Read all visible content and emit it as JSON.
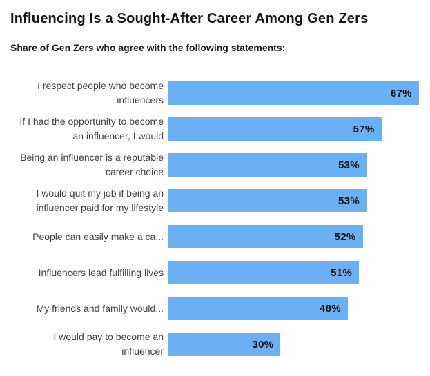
{
  "header": {
    "title": "Influencing Is a Sought-After Career Among Gen Zers",
    "subtitle": "Share of Gen Zers who agree with the following statements:"
  },
  "colors": {
    "background": "#ffffff",
    "bar": "#6ab0f3",
    "title_text": "#161616",
    "subtitle_text": "#1d1d1d",
    "category_text": "#414141",
    "value_text": "#0b0b0b"
  },
  "chart_data": {
    "type": "bar",
    "orientation": "horizontal",
    "title": "Influencing Is a Sought-After Career Among Gen Zers",
    "subtitle": "Share of Gen Zers who agree with the following statements:",
    "categories": [
      "I respect people who become influencers",
      "If I had the opportunity to become an influencer, I would",
      "Being an influencer is a reputable career choice",
      "I would quit my job if being an influencer paid for my lifestyle",
      "People can easily make a ca...",
      "Influencers lead fulfilling lives",
      "My friends and family would...",
      "I would pay to become an influencer"
    ],
    "values": [
      67,
      57,
      53,
      53,
      52,
      51,
      48,
      30
    ],
    "value_labels": [
      "67%",
      "57%",
      "53%",
      "53%",
      "52%",
      "51%",
      "48%",
      "30%"
    ],
    "xlabel": "",
    "ylabel": "",
    "xlim": [
      0,
      70
    ],
    "grid": false,
    "legend": false,
    "value_label_position": "inside-end"
  }
}
